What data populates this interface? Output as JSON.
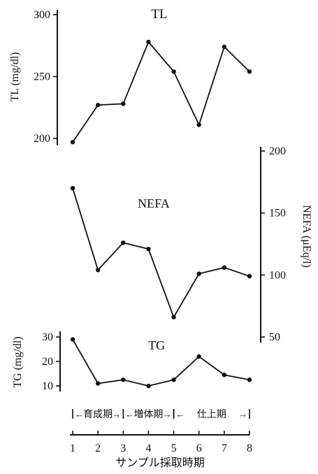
{
  "x_axis": {
    "label": "サンプル採取時期",
    "ticks": [
      1,
      2,
      3,
      4,
      5,
      6,
      7,
      8
    ]
  },
  "periods": [
    {
      "label": "育成期",
      "from": 1,
      "to": 3
    },
    {
      "label": "増体期",
      "from": 3,
      "to": 5
    },
    {
      "label": "仕上期",
      "from": 5,
      "to": 8
    }
  ],
  "chart_data": [
    {
      "type": "line",
      "title": "TL",
      "ylabel": "TL (mg/dl)",
      "ylim": [
        200,
        300
      ],
      "yticks": [
        200,
        250,
        300
      ],
      "x": [
        1,
        2,
        3,
        4,
        5,
        6,
        7,
        8
      ],
      "values": [
        197,
        227,
        228,
        278,
        254,
        211,
        274,
        254
      ]
    },
    {
      "type": "line",
      "title": "NEFA",
      "ylabel": "NEFA (μEq/l)",
      "ylim": [
        50,
        200
      ],
      "yticks": [
        50,
        100,
        150,
        200
      ],
      "x": [
        1,
        2,
        3,
        4,
        5,
        6,
        7,
        8
      ],
      "values": [
        170,
        104,
        126,
        121,
        66,
        101,
        106,
        99
      ]
    },
    {
      "type": "line",
      "title": "TG",
      "ylabel": "TG (mg/dl)",
      "ylim": [
        10,
        30
      ],
      "yticks": [
        10,
        20,
        30
      ],
      "x": [
        1,
        2,
        3,
        4,
        5,
        6,
        7,
        8
      ],
      "values": [
        29,
        11,
        12.5,
        10,
        12.5,
        22,
        14.5,
        12.5
      ]
    }
  ]
}
